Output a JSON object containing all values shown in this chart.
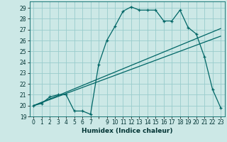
{
  "title": "",
  "xlabel": "Humidex (Indice chaleur)",
  "ylabel": "",
  "bg_color": "#cce8e6",
  "grid_color": "#99cccc",
  "line_color": "#006666",
  "xlim": [
    -0.5,
    23.5
  ],
  "ylim": [
    19,
    29.6
  ],
  "yticks": [
    19,
    20,
    21,
    22,
    23,
    24,
    25,
    26,
    27,
    28,
    29
  ],
  "xticks": [
    0,
    1,
    2,
    3,
    4,
    5,
    6,
    7,
    8,
    9,
    10,
    11,
    12,
    13,
    14,
    15,
    16,
    17,
    18,
    19,
    20,
    21,
    22,
    23
  ],
  "xtick_labels": [
    "0",
    "1",
    "2",
    "3",
    "4",
    "5",
    "6",
    "7",
    "",
    "9",
    "10",
    "11",
    "12",
    "13",
    "14",
    "15",
    "16",
    "17",
    "18",
    "19",
    "20",
    "21",
    "22",
    "23"
  ],
  "series1_x": [
    0,
    1,
    2,
    3,
    4,
    5,
    6,
    7,
    8,
    9,
    10,
    11,
    12,
    13,
    14,
    15,
    16,
    17,
    18,
    19,
    20,
    21,
    22,
    23
  ],
  "series1_y": [
    20.0,
    20.2,
    20.8,
    21.0,
    21.0,
    19.5,
    19.5,
    19.2,
    23.8,
    26.0,
    27.3,
    28.7,
    29.1,
    28.8,
    28.8,
    28.8,
    27.8,
    27.8,
    28.8,
    27.2,
    26.6,
    24.5,
    21.5,
    19.8
  ],
  "series2_x": [
    0,
    23
  ],
  "series2_y": [
    20.0,
    27.1
  ],
  "series3_x": [
    0,
    23
  ],
  "series3_y": [
    20.0,
    26.4
  ],
  "tick_fontsize": 5.5,
  "xlabel_fontsize": 6.5,
  "linewidth": 0.9,
  "marker_size": 3.5
}
